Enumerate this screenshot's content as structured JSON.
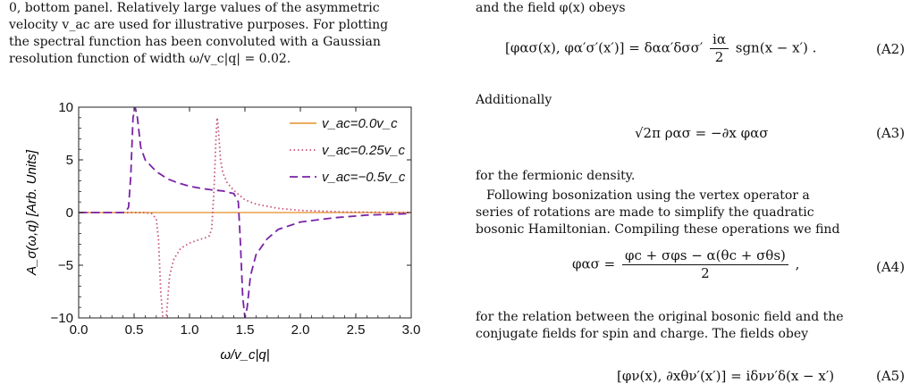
{
  "left_column": {
    "caption_lines": [
      "0, bottom panel. Relatively large values of the asymmetric",
      "velocity v_ac are used for illustrative purposes. For plotting",
      "the spectral function has been convoluted with a Gaussian",
      "resolution function of width ω/v_c|q| = 0.02."
    ]
  },
  "chart_data": {
    "type": "line",
    "xlabel": "ω/v_c|q|",
    "ylabel": "A_σ(ω,q) [Arb. Units]",
    "xlim": [
      0.0,
      3.0
    ],
    "ylim": [
      -10,
      10
    ],
    "xticks": [
      "0.0",
      "0.5",
      "1.0",
      "1.5",
      "2.0",
      "2.5",
      "3.0"
    ],
    "yticks": [
      "10",
      "5",
      "0",
      "−5",
      "−10"
    ],
    "legend_position": "top-right",
    "series": [
      {
        "name": "v_ac=0.0v_c",
        "color": "#e8a048",
        "style": "solid",
        "x": [
          0.0,
          3.0
        ],
        "y": [
          0.0,
          0.0
        ]
      },
      {
        "name": "v_ac=0.25v_c",
        "color": "#c8507a",
        "style": "dotted",
        "x": [
          0.0,
          0.6,
          0.66,
          0.7,
          0.72,
          0.74,
          0.76,
          0.79,
          0.82,
          0.86,
          0.92,
          1.0,
          1.08,
          1.14,
          1.18,
          1.2,
          1.22,
          1.24,
          1.25,
          1.26,
          1.28,
          1.3,
          1.34,
          1.4,
          1.5,
          1.6,
          1.8,
          2.0,
          2.4,
          3.0
        ],
        "y": [
          0.0,
          0.0,
          -0.1,
          -0.6,
          -2.5,
          -7.5,
          -10.0,
          -10.0,
          -6.0,
          -4.4,
          -3.4,
          -2.9,
          -2.6,
          -2.4,
          -2.2,
          -1.5,
          2.0,
          7.5,
          9.0,
          8.0,
          5.0,
          3.8,
          2.8,
          2.1,
          1.2,
          0.8,
          0.4,
          0.2,
          0.05,
          0.0
        ]
      },
      {
        "name": "v_ac=−0.5v_c",
        "color": "#7a22a8",
        "style": "dashed",
        "x": [
          0.0,
          0.42,
          0.45,
          0.47,
          0.49,
          0.51,
          0.53,
          0.56,
          0.6,
          0.7,
          0.8,
          0.9,
          1.0,
          1.1,
          1.2,
          1.3,
          1.4,
          1.44,
          1.46,
          1.48,
          1.5,
          1.52,
          1.55,
          1.6,
          1.7,
          1.8,
          2.0,
          2.3,
          2.6,
          3.0
        ],
        "y": [
          0.0,
          0.0,
          0.5,
          3.5,
          9.0,
          10.0,
          9.0,
          6.2,
          5.0,
          3.9,
          3.2,
          2.8,
          2.5,
          2.3,
          2.15,
          2.05,
          1.8,
          1.0,
          -3.0,
          -8.0,
          -10.0,
          -9.0,
          -6.0,
          -4.0,
          -2.5,
          -1.6,
          -0.9,
          -0.5,
          -0.25,
          -0.1
        ]
      }
    ]
  },
  "right_column": {
    "intro_text": "and the field φ(x) obeys",
    "eq_a2": {
      "lhs": "[φασ(x), φα′σ′(x′)] = δαα′δσσ′",
      "frac_num": "iα",
      "frac_den": "2",
      "rhs": "sgn(x − x′) .",
      "number": "(A2)"
    },
    "additionally": "Additionally",
    "eq_a3": {
      "text": "√2π ρασ = −∂x φασ",
      "number": "(A3)"
    },
    "after_a3": "for the fermionic density.",
    "para_lines": [
      "Following bosonization using the vertex operator a",
      "series of rotations are made to simplify the quadratic",
      "bosonic Hamiltonian. Compiling these operations we find"
    ],
    "eq_a4": {
      "lhs": "φασ =",
      "frac_num": "φc + σφs − α(θc + σθs)",
      "frac_den": "2",
      "rhs": ",",
      "number": "(A4)"
    },
    "after_a4_lines": [
      "for the relation between the original bosonic field and the",
      "conjugate fields for spin and charge. The fields obey"
    ],
    "eq_a5_partial": {
      "text": "[φν(x), ∂xθν′(x′)] = iδνν′δ(x − x′)",
      "number": "(A5)"
    }
  }
}
